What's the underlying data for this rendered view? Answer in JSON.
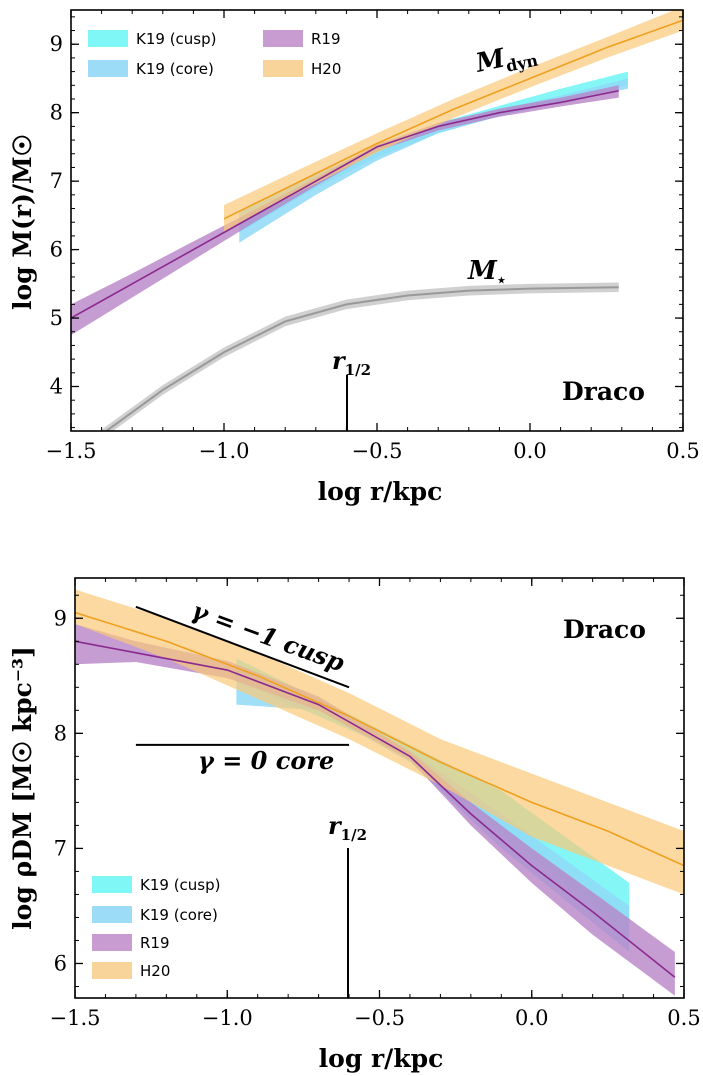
{
  "figure": {
    "legend_items": [
      {
        "label": "K19 (cusp)",
        "color": "#7ff7f7"
      },
      {
        "label": "K19 (core)",
        "color": "#9cdcf7"
      },
      {
        "label": "R19",
        "color": "#c89cd0"
      },
      {
        "label": "H20",
        "color": "#f9d49a"
      }
    ],
    "colors": {
      "k19_cusp": "#6ff5f5",
      "k19_core": "#8fd9f7",
      "r19": "#b884c8",
      "r19_line": "#8a2a8f",
      "h20": "#f9c978",
      "h20_line": "#f0a020",
      "stars": "#c8c8c8",
      "stars_line": "#999999"
    }
  },
  "chart_data": [
    {
      "type": "line",
      "title": "Draco",
      "xlabel": "log r/kpc",
      "ylabel": "log M(r)/M☉",
      "xlim": [
        -1.5,
        0.5
      ],
      "ylim": [
        3.35,
        9.5
      ],
      "xticks": [
        "−1.5",
        "−1.0",
        "−0.5",
        "0.0",
        "0.5"
      ],
      "yticks": [
        "4",
        "5",
        "6",
        "7",
        "8",
        "9"
      ],
      "annotations": {
        "mdyn": "M",
        "mdyn_sub": "dyn",
        "mstar": "M",
        "mstar_sub": "⋆",
        "rhalf": "r",
        "rhalf_sub": "1/2"
      },
      "r_half": -0.6,
      "series": [
        {
          "name": "K19 (cusp)",
          "x": [
            -0.95,
            -0.7,
            -0.5,
            -0.3,
            -0.1,
            0.1,
            0.32
          ],
          "lower": [
            6.25,
            6.9,
            7.35,
            7.7,
            7.95,
            8.15,
            8.4
          ],
          "upper": [
            6.45,
            7.05,
            7.5,
            7.85,
            8.1,
            8.35,
            8.6
          ]
        },
        {
          "name": "K19 (core)",
          "x": [
            -0.95,
            -0.7,
            -0.5,
            -0.3,
            -0.1,
            0.1,
            0.32
          ],
          "lower": [
            6.1,
            6.8,
            7.3,
            7.7,
            7.95,
            8.15,
            8.35
          ],
          "upper": [
            6.55,
            7.1,
            7.5,
            7.85,
            8.05,
            8.25,
            8.5
          ]
        },
        {
          "name": "R19",
          "x": [
            -1.5,
            -1.3,
            -1.1,
            -0.9,
            -0.7,
            -0.5,
            -0.3,
            -0.1,
            0.1,
            0.29
          ],
          "y": [
            5.0,
            5.5,
            6.0,
            6.5,
            7.0,
            7.5,
            7.8,
            8.0,
            8.15,
            8.32
          ],
          "lower": [
            4.75,
            5.3,
            5.85,
            6.4,
            6.93,
            7.44,
            7.74,
            7.94,
            8.09,
            8.22
          ],
          "upper": [
            5.2,
            5.65,
            6.12,
            6.58,
            7.05,
            7.54,
            7.85,
            8.06,
            8.22,
            8.4
          ]
        },
        {
          "name": "H20",
          "x": [
            -1.0,
            -0.75,
            -0.5,
            -0.25,
            0.0,
            0.25,
            0.5
          ],
          "y": [
            6.45,
            7.0,
            7.55,
            8.05,
            8.5,
            8.95,
            9.35
          ],
          "lower": [
            6.25,
            6.85,
            7.42,
            7.92,
            8.37,
            8.8,
            9.2
          ],
          "upper": [
            6.65,
            7.18,
            7.7,
            8.2,
            8.66,
            9.1,
            9.55
          ]
        },
        {
          "name": "M⋆",
          "x": [
            -1.4,
            -1.2,
            -1.0,
            -0.8,
            -0.6,
            -0.4,
            -0.2,
            0.0,
            0.29
          ],
          "y": [
            3.3,
            3.95,
            4.5,
            4.95,
            5.2,
            5.33,
            5.4,
            5.43,
            5.45
          ],
          "halfwidth": 0.07
        }
      ]
    },
    {
      "type": "line",
      "title": "Draco",
      "xlabel": "log r/kpc",
      "ylabel": "log ρDM [M☉ kpc⁻³]",
      "xlim": [
        -1.5,
        0.5
      ],
      "ylim": [
        5.7,
        9.35
      ],
      "xticks": [
        "−1.5",
        "−1.0",
        "−0.5",
        "0.0",
        "0.5"
      ],
      "yticks": [
        "6",
        "7",
        "8",
        "9"
      ],
      "annotations": {
        "cusp": "γ = −1 cusp",
        "core": "γ = 0 core",
        "rhalf": "r",
        "rhalf_sub": "1/2"
      },
      "r_half": -0.6,
      "guides": {
        "cusp": {
          "x": [
            -1.3,
            -0.6
          ],
          "y": [
            9.1,
            8.4
          ]
        },
        "core": {
          "x": [
            -1.3,
            -0.6
          ],
          "y": [
            7.9,
            7.9
          ]
        }
      },
      "series": [
        {
          "name": "K19 (cusp)",
          "x": [
            -0.97,
            -0.7,
            -0.4,
            -0.1,
            0.32
          ],
          "lower": [
            8.45,
            8.15,
            7.8,
            7.15,
            6.25
          ],
          "upper": [
            8.65,
            8.3,
            7.9,
            7.5,
            6.7
          ]
        },
        {
          "name": "K19 (core)",
          "x": [
            -0.97,
            -0.7,
            -0.4,
            -0.1,
            0.32
          ],
          "lower": [
            8.25,
            8.2,
            7.75,
            7.0,
            6.1
          ],
          "upper": [
            8.6,
            8.3,
            7.85,
            7.3,
            6.5
          ]
        },
        {
          "name": "R19",
          "x": [
            -1.5,
            -1.3,
            -1.0,
            -0.7,
            -0.4,
            -0.2,
            0.0,
            0.2,
            0.47
          ],
          "y": [
            8.8,
            8.7,
            8.55,
            8.25,
            7.8,
            7.3,
            6.85,
            6.45,
            5.88
          ],
          "lower": [
            8.6,
            8.62,
            8.48,
            8.2,
            7.77,
            7.2,
            6.7,
            6.25,
            5.72
          ],
          "upper": [
            8.95,
            8.8,
            8.63,
            8.32,
            7.84,
            7.4,
            7.0,
            6.62,
            6.1
          ]
        },
        {
          "name": "H20",
          "x": [
            -1.5,
            -1.2,
            -0.9,
            -0.6,
            -0.3,
            0.0,
            0.25,
            0.5
          ],
          "y": [
            9.05,
            8.8,
            8.5,
            8.15,
            7.75,
            7.4,
            7.15,
            6.85
          ],
          "lower": [
            8.95,
            8.65,
            8.3,
            7.95,
            7.55,
            7.1,
            6.85,
            6.6
          ],
          "upper": [
            9.25,
            9.0,
            8.7,
            8.35,
            7.95,
            7.65,
            7.4,
            7.15
          ]
        }
      ]
    }
  ]
}
